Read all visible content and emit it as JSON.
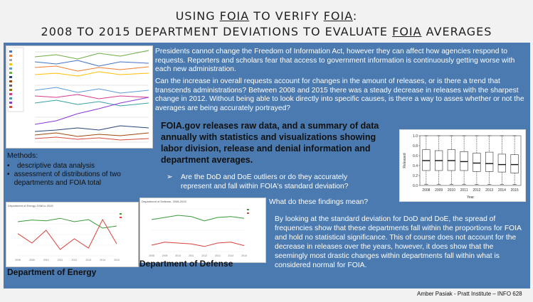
{
  "title": {
    "line1_pre": "USING ",
    "line1_a": "FOIA",
    "line1_mid": " TO VERIFY ",
    "line1_b": "FOIA",
    "line1_end": ":",
    "line2_pre": "2008 TO 2015 DEPARTMENT DEVIATIONS TO EVALUATE ",
    "line2_a": "FOIA",
    "line2_end": " AVERAGES"
  },
  "intro_p1": "Presidents cannot change the Freedom of Information Act, however they can affect how agencies respond to requests. Reporters and scholars fear that access to government information is continuously getting worse with each new administration.",
  "intro_p2": "Can the increase in overall requests account for changes in the amount of releases, or is there a trend that transcends administrations? Between 2008 and 2015 there was a steady decrease in releases with the sharpest change in 2012. Without being able to look directly into specific causes, is there a way to asses whether or not the averages are being accurately portrayed?",
  "highlight": "FOIA.gov releases raw data, and a summary of data annually with statistics and visualizations showing labor division, release and denial information and department averages.",
  "questions": [
    "Are the DoD and DoE outliers or do they accurately represent and fall within FOIA's standard deviation?",
    "What do these findings mean?"
  ],
  "methods": {
    "heading": "Methods:",
    "items": [
      "descriptive data analysis",
      "assessment of distributions of two departments and FOIA total"
    ]
  },
  "conclusion": "By looking at the standard deviation for DoD and DoE, the spread of frequencies show that these departments fall within the proportions for FOIA and hold no statistical significance. This of course does not account for the decrease in releases over the years, however, it does show that the seemingly most drastic changes within departments fall within what is considered normal for FOIA.",
  "captions": {
    "energy": "Department of Energy",
    "defense": "Department of Defense"
  },
  "footer": "Amber Pasiak  - Pratt Institute – INFO 628",
  "energy_chart_title": "Department of Energy 2008 to 2015",
  "defense_chart_title": "Department of Defense, 2008-2015",
  "chart_data": [
    {
      "type": "boxplot",
      "title": "",
      "xlabel": "Year",
      "ylabel": "Released",
      "ylim": [
        0.0,
        1.0
      ],
      "yticks": [
        "0.0",
        "0.2",
        "0.4",
        "0.6",
        "0.8",
        "1.0"
      ],
      "categories": [
        "2008",
        "2009",
        "2010",
        "2011",
        "2012",
        "2013",
        "2014",
        "2015"
      ],
      "boxes": [
        {
          "min": 0.02,
          "q1": 0.3,
          "median": 0.5,
          "q3": 0.72,
          "max": 1.0
        },
        {
          "min": 0.02,
          "q1": 0.3,
          "median": 0.5,
          "q3": 0.7,
          "max": 1.0
        },
        {
          "min": 0.02,
          "q1": 0.3,
          "median": 0.5,
          "q3": 0.72,
          "max": 1.0
        },
        {
          "min": 0.02,
          "q1": 0.3,
          "median": 0.48,
          "q3": 0.68,
          "max": 1.0
        },
        {
          "min": 0.02,
          "q1": 0.28,
          "median": 0.45,
          "q3": 0.65,
          "max": 1.0
        },
        {
          "min": 0.02,
          "q1": 0.28,
          "median": 0.44,
          "q3": 0.67,
          "max": 1.0
        },
        {
          "min": 0.02,
          "q1": 0.27,
          "median": 0.42,
          "q3": 0.63,
          "max": 1.0
        },
        {
          "min": 0.02,
          "q1": 0.25,
          "median": 0.42,
          "q3": 0.62,
          "max": 1.0
        }
      ]
    },
    {
      "type": "line",
      "title": "Department of Energy 2008 to 2015",
      "x": [
        2008,
        2009,
        2010,
        2011,
        2012,
        2013,
        2014,
        2015
      ],
      "ylim": [
        0,
        100
      ],
      "series": [
        {
          "values": [
            80,
            84,
            82,
            88,
            80,
            85,
            65,
            70
          ],
          "color": "#3a9a3a"
        },
        {
          "values": [
            52,
            30,
            60,
            15,
            40,
            18,
            85,
            28
          ],
          "color": "#d8403a"
        }
      ]
    },
    {
      "type": "line",
      "title": "Department of Defense, 2008-2015",
      "x": [
        2008,
        2009,
        2010,
        2011,
        2012,
        2013,
        2014,
        2015
      ],
      "ylim": [
        0,
        100
      ],
      "series": [
        {
          "values": [
            75,
            80,
            85,
            82,
            72,
            80,
            82,
            78
          ],
          "color": "#3a9a3a"
        },
        {
          "values": [
            15,
            22,
            20,
            18,
            12,
            20,
            22,
            14
          ],
          "color": "#d8403a"
        }
      ]
    }
  ]
}
